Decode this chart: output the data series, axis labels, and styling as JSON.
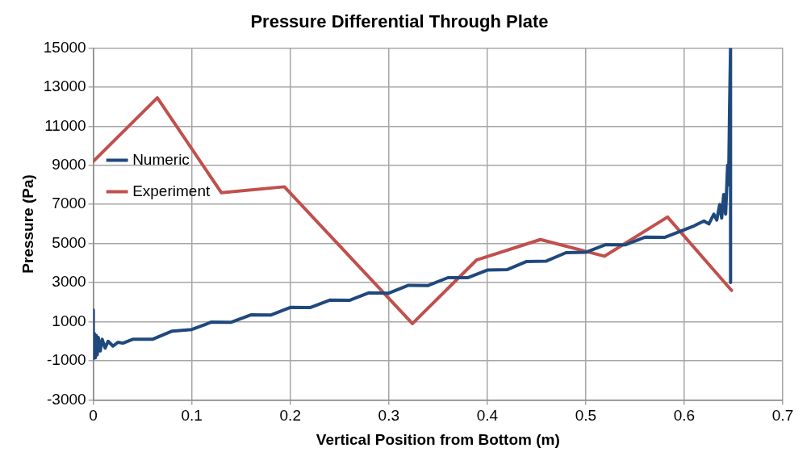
{
  "chart_data": {
    "type": "line",
    "title": "Pressure Differential Through Plate",
    "xlabel": "Vertical Position from Bottom (m)",
    "ylabel": "Pressure (Pa)",
    "xlim": [
      0,
      0.7
    ],
    "xticks": [
      0,
      0.1,
      0.2,
      0.3,
      0.4,
      0.5,
      0.6,
      0.7
    ],
    "ylim": [
      -3000,
      15000
    ],
    "yticks": [
      -3000,
      -1000,
      1000,
      3000,
      5000,
      7000,
      9000,
      11000,
      13000,
      15000
    ],
    "grid": true,
    "legend": "top",
    "marker": "none",
    "line_style": "solid",
    "series": [
      {
        "name": "Numeric",
        "color": "#1f497d",
        "x": [
          0,
          0,
          0.001,
          0.002,
          0.003,
          0.004,
          0.005,
          0.007,
          0.009,
          0.012,
          0.015,
          0.02,
          0.025,
          0.03,
          0.04,
          0.06,
          0.08,
          0.1,
          0.12,
          0.14,
          0.16,
          0.18,
          0.2,
          0.22,
          0.24,
          0.26,
          0.28,
          0.3,
          0.32,
          0.34,
          0.36,
          0.38,
          0.4,
          0.42,
          0.44,
          0.46,
          0.48,
          0.5,
          0.52,
          0.54,
          0.56,
          0.58,
          0.6,
          0.61,
          0.62,
          0.625,
          0.63,
          0.633,
          0.636,
          0.638,
          0.64,
          0.642,
          0.644,
          0.645,
          0.646,
          0.647,
          0.647
        ],
        "values": [
          1600,
          -900,
          400,
          -850,
          300,
          -700,
          200,
          -500,
          100,
          -350,
          0,
          -250,
          -50,
          -100,
          100,
          100,
          520,
          600,
          980,
          970,
          1350,
          1340,
          1730,
          1720,
          2100,
          2090,
          2480,
          2460,
          2860,
          2850,
          3250,
          3250,
          3640,
          3660,
          4080,
          4100,
          4530,
          4550,
          4940,
          4930,
          5320,
          5310,
          5700,
          5900,
          6150,
          6000,
          6500,
          6200,
          7000,
          6300,
          7500,
          6500,
          9000,
          8000,
          12000,
          15000,
          3000
        ]
      },
      {
        "name": "Experiment",
        "color": "#c0504d",
        "x": [
          0,
          0.065,
          0.13,
          0.194,
          0.324,
          0.389,
          0.454,
          0.519,
          0.583,
          0.648
        ],
        "values": [
          9200,
          12450,
          7600,
          7900,
          900,
          4150,
          5200,
          4350,
          6350,
          2600
        ]
      }
    ]
  }
}
